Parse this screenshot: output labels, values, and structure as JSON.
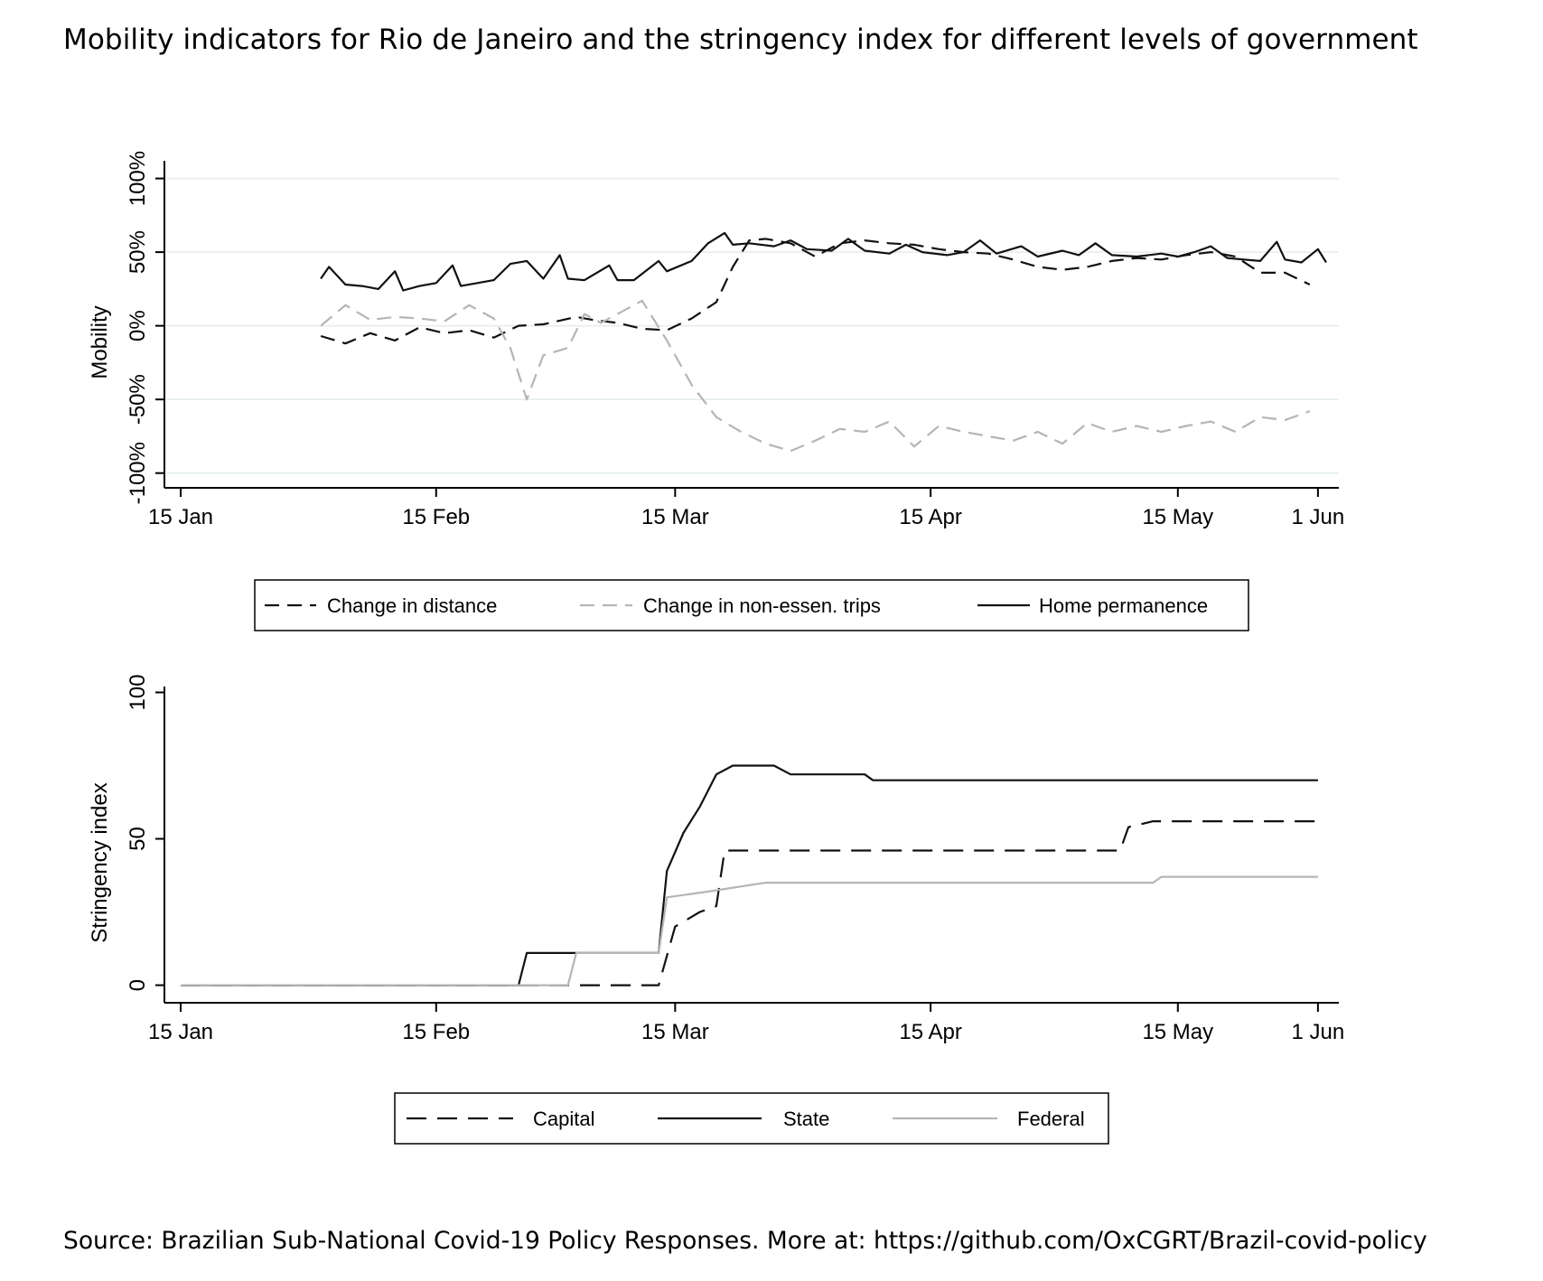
{
  "figure": {
    "title": "Mobility indicators for Rio de Janeiro and the stringency index for different levels of government",
    "source": "Source: Brazilian Sub-National Covid-19 Policy Responses. More at: https://github.com/OxCGRT/Brazil-covid-policy"
  },
  "chart_data": [
    {
      "type": "line",
      "ylabel": "Mobility",
      "xlabel": "",
      "x_ticks": [
        {
          "date": "2020-01-15",
          "label": "15 Jan"
        },
        {
          "date": "2020-02-15",
          "label": "15 Feb"
        },
        {
          "date": "2020-03-15",
          "label": "15 Mar"
        },
        {
          "date": "2020-04-15",
          "label": "15 Apr"
        },
        {
          "date": "2020-05-15",
          "label": "15 May"
        },
        {
          "date": "2020-06-01",
          "label": "1 Jun"
        }
      ],
      "y_ticks": [
        {
          "value": -100,
          "label": "-100%"
        },
        {
          "value": -50,
          "label": "-50%"
        },
        {
          "value": 0,
          "label": "0%"
        },
        {
          "value": 50,
          "label": "50%"
        },
        {
          "value": 100,
          "label": "100%"
        }
      ],
      "xlim": [
        "2020-01-15",
        "2020-06-02"
      ],
      "ylim": [
        -110,
        112
      ],
      "grid": true,
      "legend_position": "bottom",
      "series": [
        {
          "name": "Change in distance",
          "style": "dashed",
          "color": "#111111",
          "points": [
            [
              "2020-02-01",
              -7
            ],
            [
              "2020-02-04",
              -12
            ],
            [
              "2020-02-07",
              -5
            ],
            [
              "2020-02-10",
              -10
            ],
            [
              "2020-02-13",
              -1
            ],
            [
              "2020-02-16",
              -5
            ],
            [
              "2020-02-19",
              -3
            ],
            [
              "2020-02-22",
              -8
            ],
            [
              "2020-02-25",
              0
            ],
            [
              "2020-02-28",
              1
            ],
            [
              "2020-03-03",
              6
            ],
            [
              "2020-03-05",
              4
            ],
            [
              "2020-03-08",
              2
            ],
            [
              "2020-03-11",
              -2
            ],
            [
              "2020-03-14",
              -3
            ],
            [
              "2020-03-17",
              5
            ],
            [
              "2020-03-20",
              16
            ],
            [
              "2020-03-22",
              40
            ],
            [
              "2020-03-24",
              58
            ],
            [
              "2020-03-26",
              59
            ],
            [
              "2020-03-29",
              56
            ],
            [
              "2020-04-01",
              47
            ],
            [
              "2020-04-04",
              56
            ],
            [
              "2020-04-07",
              58
            ],
            [
              "2020-04-10",
              56
            ],
            [
              "2020-04-13",
              55
            ],
            [
              "2020-04-16",
              52
            ],
            [
              "2020-04-19",
              50
            ],
            [
              "2020-04-22",
              49
            ],
            [
              "2020-04-25",
              45
            ],
            [
              "2020-04-28",
              40
            ],
            [
              "2020-05-01",
              38
            ],
            [
              "2020-05-04",
              40
            ],
            [
              "2020-05-07",
              44
            ],
            [
              "2020-05-10",
              46
            ],
            [
              "2020-05-13",
              45
            ],
            [
              "2020-05-16",
              48
            ],
            [
              "2020-05-19",
              50
            ],
            [
              "2020-05-22",
              47
            ],
            [
              "2020-05-25",
              36
            ],
            [
              "2020-05-28",
              36
            ],
            [
              "2020-05-31",
              28
            ]
          ]
        },
        {
          "name": "Change in non-essen. trips",
          "style": "dashed",
          "color": "#b5b5b5",
          "points": [
            [
              "2020-02-01",
              0
            ],
            [
              "2020-02-04",
              14
            ],
            [
              "2020-02-07",
              4
            ],
            [
              "2020-02-10",
              6
            ],
            [
              "2020-02-13",
              5
            ],
            [
              "2020-02-16",
              3
            ],
            [
              "2020-02-19",
              14
            ],
            [
              "2020-02-22",
              5
            ],
            [
              "2020-02-24",
              -15
            ],
            [
              "2020-02-26",
              -50
            ],
            [
              "2020-02-28",
              -20
            ],
            [
              "2020-03-02",
              -15
            ],
            [
              "2020-03-04",
              8
            ],
            [
              "2020-03-06",
              2
            ],
            [
              "2020-03-09",
              11
            ],
            [
              "2020-03-11",
              17
            ],
            [
              "2020-03-14",
              -10
            ],
            [
              "2020-03-17",
              -40
            ],
            [
              "2020-03-20",
              -62
            ],
            [
              "2020-03-23",
              -72
            ],
            [
              "2020-03-26",
              -80
            ],
            [
              "2020-03-29",
              -85
            ],
            [
              "2020-04-01",
              -78
            ],
            [
              "2020-04-04",
              -70
            ],
            [
              "2020-04-07",
              -72
            ],
            [
              "2020-04-10",
              -65
            ],
            [
              "2020-04-13",
              -82
            ],
            [
              "2020-04-16",
              -68
            ],
            [
              "2020-04-19",
              -72
            ],
            [
              "2020-04-22",
              -75
            ],
            [
              "2020-04-25",
              -78
            ],
            [
              "2020-04-28",
              -72
            ],
            [
              "2020-05-01",
              -80
            ],
            [
              "2020-05-04",
              -66
            ],
            [
              "2020-05-07",
              -72
            ],
            [
              "2020-05-10",
              -68
            ],
            [
              "2020-05-13",
              -72
            ],
            [
              "2020-05-16",
              -68
            ],
            [
              "2020-05-19",
              -65
            ],
            [
              "2020-05-22",
              -72
            ],
            [
              "2020-05-25",
              -62
            ],
            [
              "2020-05-28",
              -64
            ],
            [
              "2020-05-31",
              -58
            ]
          ]
        },
        {
          "name": "Home permanence",
          "style": "solid",
          "color": "#111111",
          "points": [
            [
              "2020-02-01",
              32
            ],
            [
              "2020-02-02",
              40
            ],
            [
              "2020-02-04",
              28
            ],
            [
              "2020-02-06",
              27
            ],
            [
              "2020-02-08",
              25
            ],
            [
              "2020-02-10",
              37
            ],
            [
              "2020-02-11",
              24
            ],
            [
              "2020-02-13",
              27
            ],
            [
              "2020-02-15",
              29
            ],
            [
              "2020-02-17",
              41
            ],
            [
              "2020-02-18",
              27
            ],
            [
              "2020-02-20",
              29
            ],
            [
              "2020-02-22",
              31
            ],
            [
              "2020-02-24",
              42
            ],
            [
              "2020-02-26",
              44
            ],
            [
              "2020-02-28",
              32
            ],
            [
              "2020-03-01",
              48
            ],
            [
              "2020-03-02",
              32
            ],
            [
              "2020-03-04",
              31
            ],
            [
              "2020-03-07",
              41
            ],
            [
              "2020-03-08",
              31
            ],
            [
              "2020-03-10",
              31
            ],
            [
              "2020-03-13",
              44
            ],
            [
              "2020-03-14",
              37
            ],
            [
              "2020-03-17",
              44
            ],
            [
              "2020-03-19",
              56
            ],
            [
              "2020-03-21",
              63
            ],
            [
              "2020-03-22",
              55
            ],
            [
              "2020-03-24",
              56
            ],
            [
              "2020-03-27",
              54
            ],
            [
              "2020-03-29",
              58
            ],
            [
              "2020-03-31",
              52
            ],
            [
              "2020-04-03",
              51
            ],
            [
              "2020-04-05",
              59
            ],
            [
              "2020-04-07",
              51
            ],
            [
              "2020-04-10",
              49
            ],
            [
              "2020-04-12",
              55
            ],
            [
              "2020-04-14",
              50
            ],
            [
              "2020-04-17",
              48
            ],
            [
              "2020-04-19",
              50
            ],
            [
              "2020-04-21",
              58
            ],
            [
              "2020-04-23",
              49
            ],
            [
              "2020-04-26",
              54
            ],
            [
              "2020-04-28",
              47
            ],
            [
              "2020-05-01",
              51
            ],
            [
              "2020-05-03",
              48
            ],
            [
              "2020-05-05",
              56
            ],
            [
              "2020-05-07",
              48
            ],
            [
              "2020-05-10",
              47
            ],
            [
              "2020-05-13",
              49
            ],
            [
              "2020-05-15",
              47
            ],
            [
              "2020-05-17",
              50
            ],
            [
              "2020-05-19",
              54
            ],
            [
              "2020-05-21",
              46
            ],
            [
              "2020-05-23",
              45
            ],
            [
              "2020-05-25",
              44
            ],
            [
              "2020-05-27",
              57
            ],
            [
              "2020-05-28",
              45
            ],
            [
              "2020-05-30",
              43
            ],
            [
              "2020-06-01",
              52
            ],
            [
              "2020-06-02",
              43
            ]
          ]
        }
      ]
    },
    {
      "type": "line",
      "ylabel": "Stringency index",
      "xlabel": "",
      "x_ticks": [
        {
          "date": "2020-01-15",
          "label": "15 Jan"
        },
        {
          "date": "2020-02-15",
          "label": "15 Feb"
        },
        {
          "date": "2020-03-15",
          "label": "15 Mar"
        },
        {
          "date": "2020-04-15",
          "label": "15 Apr"
        },
        {
          "date": "2020-05-15",
          "label": "15 May"
        },
        {
          "date": "2020-06-01",
          "label": "1 Jun"
        }
      ],
      "y_ticks": [
        {
          "value": 0,
          "label": "0"
        },
        {
          "value": 50,
          "label": "50"
        },
        {
          "value": 100,
          "label": "100"
        }
      ],
      "xlim": [
        "2020-01-15",
        "2020-06-02"
      ],
      "ylim": [
        -6,
        102
      ],
      "grid": false,
      "legend_position": "bottom",
      "series": [
        {
          "name": "Capital",
          "style": "dashed",
          "color": "#111111",
          "points": [
            [
              "2020-01-15",
              0
            ],
            [
              "2020-03-13",
              0
            ],
            [
              "2020-03-15",
              20
            ],
            [
              "2020-03-18",
              25
            ],
            [
              "2020-03-20",
              27
            ],
            [
              "2020-03-21",
              46
            ],
            [
              "2020-05-08",
              46
            ],
            [
              "2020-05-09",
              54
            ],
            [
              "2020-05-12",
              56
            ],
            [
              "2020-06-01",
              56
            ]
          ]
        },
        {
          "name": "State",
          "style": "solid",
          "color": "#111111",
          "points": [
            [
              "2020-01-15",
              0
            ],
            [
              "2020-02-25",
              0
            ],
            [
              "2020-02-26",
              11
            ],
            [
              "2020-03-13",
              11
            ],
            [
              "2020-03-14",
              39
            ],
            [
              "2020-03-16",
              52
            ],
            [
              "2020-03-18",
              61
            ],
            [
              "2020-03-20",
              72
            ],
            [
              "2020-03-22",
              75
            ],
            [
              "2020-03-27",
              75
            ],
            [
              "2020-03-29",
              72
            ],
            [
              "2020-04-07",
              72
            ],
            [
              "2020-04-08",
              70
            ],
            [
              "2020-06-01",
              70
            ]
          ]
        },
        {
          "name": "Federal",
          "style": "solid",
          "color": "#b5b5b5",
          "points": [
            [
              "2020-01-15",
              0
            ],
            [
              "2020-03-02",
              0
            ],
            [
              "2020-03-03",
              11
            ],
            [
              "2020-03-13",
              11
            ],
            [
              "2020-03-14",
              30
            ],
            [
              "2020-03-19",
              32
            ],
            [
              "2020-03-26",
              35
            ],
            [
              "2020-05-12",
              35
            ],
            [
              "2020-05-13",
              37
            ],
            [
              "2020-06-01",
              37
            ]
          ]
        }
      ]
    }
  ]
}
